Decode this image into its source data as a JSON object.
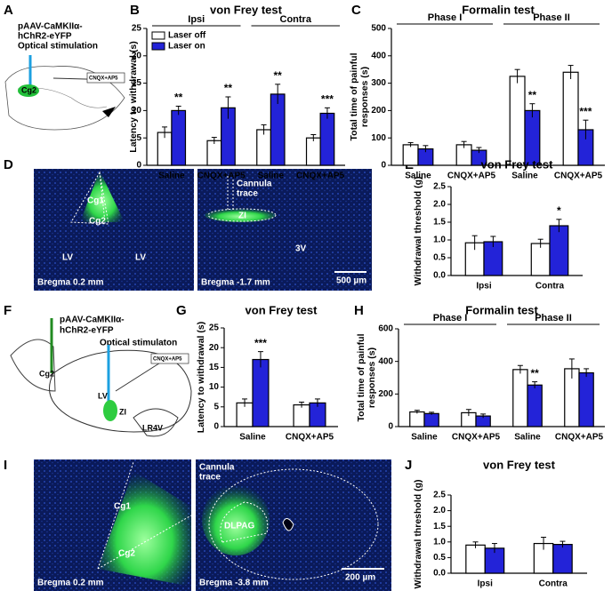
{
  "panel_labels": [
    "A",
    "B",
    "C",
    "D",
    "E",
    "F",
    "G",
    "H",
    "I",
    "J"
  ],
  "schematic_a": {
    "virus": [
      "pAAV-CaMKIIα-",
      "hChR2-eYFP"
    ],
    "stim": "Optical stimulation",
    "region": "Cg2",
    "drug": "CNQX+AP5"
  },
  "micrograph_d": {
    "left": [
      "Cg1",
      "Cg2",
      "LV",
      "LV",
      "Bregma 0.2 mm"
    ],
    "right": [
      "Cannula",
      "trace",
      "ZI",
      "3V",
      "Bregma -1.7 mm",
      "500 µm"
    ]
  },
  "schematic_f": {
    "virus": [
      "pAAV-CaMKIIα-",
      "hChR2-eYFP"
    ],
    "stim": "Optical stimulaton",
    "region": "Cg2",
    "drug": "CNQX+AP5",
    "labels": [
      "LV",
      "ZI",
      "LR4V"
    ]
  },
  "micrograph_i": {
    "left": [
      "Cg1",
      "Cg2",
      "Bregma 0.2 mm"
    ],
    "right": [
      "Cannula",
      "trace",
      "DLPAG",
      "Bregma -3.8 mm",
      "200 µm"
    ]
  },
  "chart_data": [
    {
      "type": "bar",
      "title": "von Frey test",
      "ylabel": [
        "Latency to withdrawal (s)"
      ],
      "groups": [
        "Ipsi",
        "Contra"
      ],
      "categories": [
        "Saline",
        "CNQX+AP5",
        "Saline",
        "CNQX+AP5"
      ],
      "ylim": [
        0,
        25
      ],
      "yticks": [
        0,
        5,
        10,
        15,
        20,
        25
      ],
      "series": [
        {
          "name": "Laser off",
          "color": "#ffffff",
          "values": [
            6,
            4.5,
            6.5,
            5
          ],
          "errors": [
            1,
            0.6,
            0.9,
            0.6
          ]
        },
        {
          "name": "Laser on",
          "color": "#2323d8",
          "values": [
            10,
            10.5,
            13,
            9.5
          ],
          "errors": [
            0.8,
            2,
            1.8,
            1
          ],
          "annotations": [
            "**",
            "**",
            "**",
            "***"
          ]
        }
      ]
    },
    {
      "type": "bar",
      "title": "Formalin test",
      "ylabel": [
        "Total time of painful",
        "responses (s)"
      ],
      "groups": [
        "Phase I",
        "Phase II"
      ],
      "categories": [
        "Saline",
        "CNQX+AP5",
        "Saline",
        "CNQX+AP5"
      ],
      "ylim": [
        0,
        500
      ],
      "yticks": [
        0,
        100,
        200,
        300,
        400,
        500
      ],
      "series": [
        {
          "color": "#ffffff",
          "values": [
            75,
            75,
            325,
            340
          ],
          "errors": [
            8,
            12,
            25,
            25
          ]
        },
        {
          "color": "#2323d8",
          "values": [
            60,
            55,
            200,
            130
          ],
          "errors": [
            12,
            10,
            25,
            35
          ],
          "annotations": [
            null,
            null,
            "**",
            "***"
          ]
        }
      ]
    },
    {
      "type": "bar",
      "title": "von Frey test",
      "ylabel": [
        "Withdrawal threshold (g)"
      ],
      "categories": [
        "Ipsi",
        "Contra"
      ],
      "ylim": [
        0,
        2.5
      ],
      "yticks": [
        {
          "value": 0,
          "label": "0.0"
        },
        {
          "value": 0.5,
          "label": "0.5"
        },
        {
          "value": 1,
          "label": "1.0"
        },
        {
          "value": 1.5,
          "label": "1.5"
        },
        {
          "value": 2,
          "label": "2.0"
        },
        {
          "value": 2.5,
          "label": "2.5"
        }
      ],
      "series": [
        {
          "color": "#ffffff",
          "values": [
            0.92,
            0.9
          ],
          "errors": [
            0.2,
            0.12
          ]
        },
        {
          "color": "#2323d8",
          "values": [
            0.95,
            1.4
          ],
          "errors": [
            0.15,
            0.18
          ],
          "annotations": [
            null,
            "*"
          ]
        }
      ]
    },
    {
      "type": "bar",
      "title": "von Frey test",
      "ylabel": [
        "Latency to withdrawal (s)"
      ],
      "categories": [
        "Saline",
        "CNQX+AP5"
      ],
      "ylim": [
        0,
        25
      ],
      "yticks": [
        0,
        5,
        10,
        15,
        20,
        25
      ],
      "series": [
        {
          "color": "#ffffff",
          "values": [
            6,
            5.5
          ],
          "errors": [
            1,
            0.7
          ]
        },
        {
          "color": "#2323d8",
          "values": [
            17,
            6
          ],
          "errors": [
            2,
            1
          ],
          "annotations": [
            "***",
            null
          ]
        }
      ]
    },
    {
      "type": "bar",
      "title": "Formalin test",
      "ylabel": [
        "Total time of painful",
        "responses (s)"
      ],
      "groups": [
        "Phase I",
        "Phase II"
      ],
      "categories": [
        "Saline",
        "CNQX+AP5",
        "Saline",
        "CNQX+AP5"
      ],
      "ylim": [
        0,
        600
      ],
      "yticks": [
        0,
        200,
        400,
        600
      ],
      "series": [
        {
          "color": "#ffffff",
          "values": [
            90,
            85,
            350,
            355
          ],
          "errors": [
            10,
            20,
            25,
            60
          ]
        },
        {
          "color": "#2323d8",
          "values": [
            80,
            65,
            255,
            330
          ],
          "errors": [
            8,
            12,
            20,
            25
          ],
          "annotations": [
            null,
            null,
            "**",
            null
          ]
        }
      ]
    },
    {
      "type": "bar",
      "title": "von Frey test",
      "ylabel": [
        "Withdrawal threshold (g)"
      ],
      "categories": [
        "Ipsi",
        "Contra"
      ],
      "ylim": [
        0,
        2.5
      ],
      "yticks": [
        {
          "value": 0,
          "label": "0.0"
        },
        {
          "value": 0.5,
          "label": "0.5"
        },
        {
          "value": 1,
          "label": "1.0"
        },
        {
          "value": 1.5,
          "label": "1.5"
        },
        {
          "value": 2,
          "label": "2.0"
        },
        {
          "value": 2.5,
          "label": "2.5"
        }
      ],
      "series": [
        {
          "color": "#ffffff",
          "values": [
            0.9,
            0.95
          ],
          "errors": [
            0.1,
            0.2
          ]
        },
        {
          "color": "#2323d8",
          "values": [
            0.8,
            0.92
          ],
          "errors": [
            0.15,
            0.1
          ]
        }
      ]
    }
  ]
}
